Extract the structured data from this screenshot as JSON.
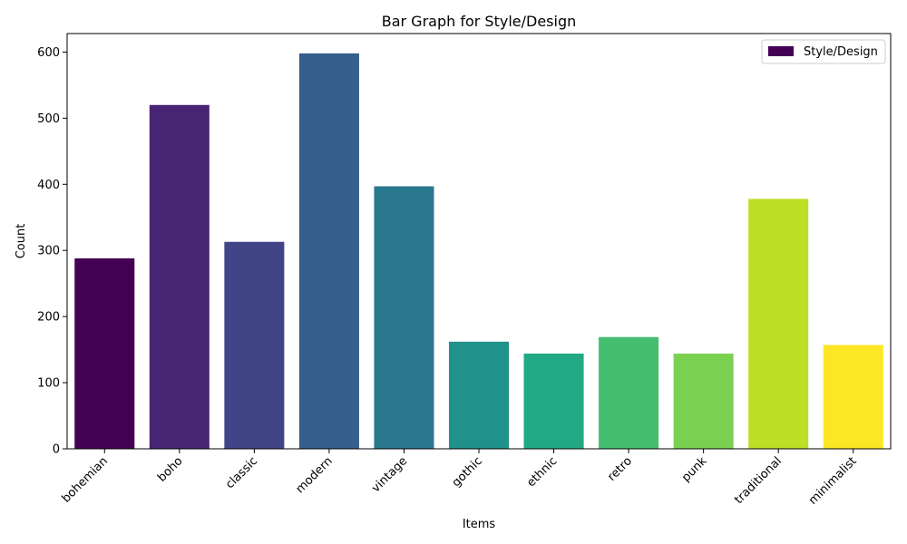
{
  "chart_data": {
    "type": "bar",
    "title": "Bar Graph for Style/Design",
    "xlabel": "Items",
    "ylabel": "Count",
    "categories": [
      "bohemian",
      "boho",
      "classic",
      "modern",
      "vintage",
      "gothic",
      "ethnic",
      "retro",
      "punk",
      "traditional",
      "minimalist"
    ],
    "series": [
      {
        "name": "Style/Design",
        "values": [
          288,
          520,
          313,
          598,
          397,
          162,
          144,
          169,
          144,
          378,
          157
        ]
      }
    ],
    "bar_colors": [
      "#440154",
      "#482475",
      "#414487",
      "#355f8d",
      "#2a788e",
      "#21918c",
      "#22a884",
      "#44bf70",
      "#7ad151",
      "#bddf26",
      "#fde725"
    ],
    "yticks": [
      0,
      100,
      200,
      300,
      400,
      500,
      600
    ],
    "ylim": [
      0,
      628
    ],
    "grid": false,
    "legend_position": "top-right"
  }
}
